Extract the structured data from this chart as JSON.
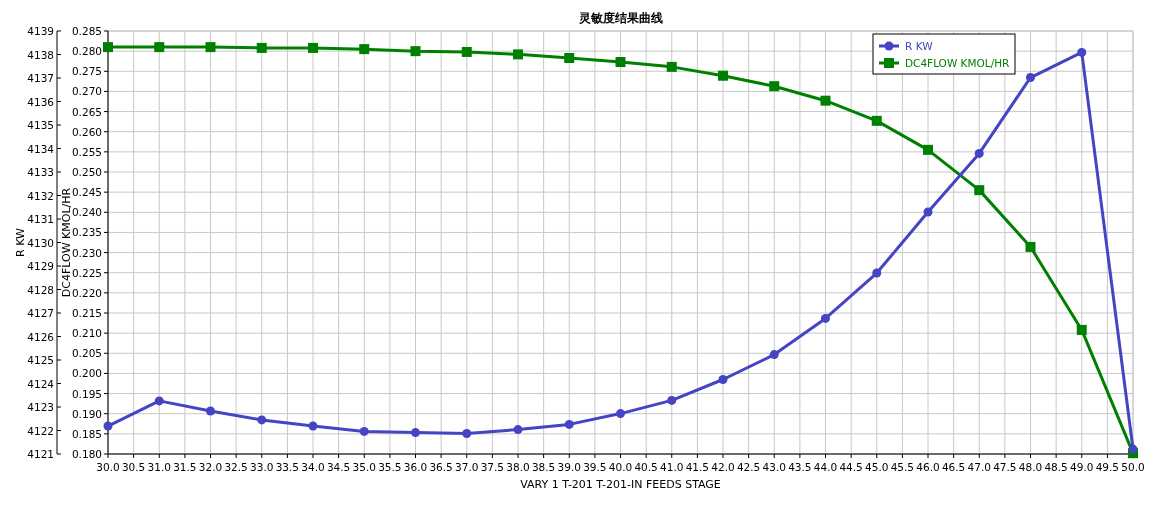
{
  "chart_data": {
    "type": "line",
    "title": "灵敏度结果曲线",
    "xlabel": "VARY   1 T-201 T-201-IN FEEDS STAGE",
    "ylabel": "R KW",
    "y2label": "DC4FLOW KMOL/HR",
    "x": [
      30,
      31,
      32,
      33,
      34,
      35,
      36,
      37,
      38,
      39,
      40,
      41,
      42,
      43,
      44,
      45,
      46,
      47,
      48,
      49,
      50
    ],
    "series": [
      {
        "name": "R KW",
        "color": "#4444c4",
        "marker": "circle",
        "values": [
          4122.19,
          4123.26,
          4122.83,
          4122.45,
          4122.19,
          4121.96,
          4121.91,
          4121.87,
          4122.04,
          4122.26,
          4122.72,
          4123.28,
          4124.17,
          4125.23,
          4126.77,
          4128.7,
          4131.3,
          4133.79,
          4137.02,
          4138.09,
          4121.21
        ]
      },
      {
        "name": "DC4FLOW KMOL/HR",
        "color": "#008000",
        "marker": "square",
        "axis": "y2",
        "values": [
          0.281,
          0.281,
          0.281,
          0.2808,
          0.2808,
          0.2805,
          0.28,
          0.2798,
          0.2792,
          0.2783,
          0.2773,
          0.2761,
          0.2739,
          0.2713,
          0.2677,
          0.2627,
          0.2555,
          0.2455,
          0.2314,
          0.2108,
          0.1802
        ]
      }
    ],
    "xlim": [
      30,
      50
    ],
    "xticks": [
      {
        "value": 30,
        "label": "30.0"
      },
      {
        "value": 30.5,
        "label": "30.5"
      },
      {
        "value": 31,
        "label": "31.0"
      },
      {
        "value": 31.5,
        "label": "31.5"
      },
      {
        "value": 32,
        "label": "32.0"
      },
      {
        "value": 32.5,
        "label": "32.5"
      },
      {
        "value": 33,
        "label": "33.0"
      },
      {
        "value": 33.5,
        "label": "33.5"
      },
      {
        "value": 34,
        "label": "34.0"
      },
      {
        "value": 34.5,
        "label": "34.5"
      },
      {
        "value": 35,
        "label": "35.0"
      },
      {
        "value": 35.5,
        "label": "35.5"
      },
      {
        "value": 36,
        "label": "36.0"
      },
      {
        "value": 36.5,
        "label": "36.5"
      },
      {
        "value": 37,
        "label": "37.0"
      },
      {
        "value": 37.5,
        "label": "37.5"
      },
      {
        "value": 38,
        "label": "38.0"
      },
      {
        "value": 38.5,
        "label": "38.5"
      },
      {
        "value": 39,
        "label": "39.0"
      },
      {
        "value": 39.5,
        "label": "39.5"
      },
      {
        "value": 40,
        "label": "40.0"
      },
      {
        "value": 40.5,
        "label": "40.5"
      },
      {
        "value": 41,
        "label": "41.0"
      },
      {
        "value": 41.5,
        "label": "41.5"
      },
      {
        "value": 42,
        "label": "42.0"
      },
      {
        "value": 42.5,
        "label": "42.5"
      },
      {
        "value": 43,
        "label": "43.0"
      },
      {
        "value": 43.5,
        "label": "43.5"
      },
      {
        "value": 44,
        "label": "44.0"
      },
      {
        "value": 44.5,
        "label": "44.5"
      },
      {
        "value": 45,
        "label": "45.0"
      },
      {
        "value": 45.5,
        "label": "45.5"
      },
      {
        "value": 46,
        "label": "46.0"
      },
      {
        "value": 46.5,
        "label": "46.5"
      },
      {
        "value": 47,
        "label": "47.0"
      },
      {
        "value": 47.5,
        "label": "47.5"
      },
      {
        "value": 48,
        "label": "48.0"
      },
      {
        "value": 48.5,
        "label": "48.5"
      },
      {
        "value": 49,
        "label": "49.0"
      },
      {
        "value": 49.5,
        "label": "49.5"
      },
      {
        "value": 50,
        "label": "50.0"
      }
    ],
    "ylim": [
      4121,
      4139
    ],
    "yticks": [
      4121,
      4122,
      4123,
      4124,
      4125,
      4126,
      4127,
      4128,
      4129,
      4130,
      4131,
      4132,
      4133,
      4134,
      4135,
      4136,
      4137,
      4138,
      4139
    ],
    "y2lim": [
      0.18,
      0.285
    ],
    "y2ticks": [
      {
        "value": 0.18,
        "label": "0.180"
      },
      {
        "value": 0.185,
        "label": "0.185"
      },
      {
        "value": 0.19,
        "label": "0.190"
      },
      {
        "value": 0.195,
        "label": "0.195"
      },
      {
        "value": 0.2,
        "label": "0.200"
      },
      {
        "value": 0.205,
        "label": "0.205"
      },
      {
        "value": 0.21,
        "label": "0.210"
      },
      {
        "value": 0.215,
        "label": "0.215"
      },
      {
        "value": 0.22,
        "label": "0.220"
      },
      {
        "value": 0.225,
        "label": "0.225"
      },
      {
        "value": 0.23,
        "label": "0.230"
      },
      {
        "value": 0.235,
        "label": "0.235"
      },
      {
        "value": 0.24,
        "label": "0.240"
      },
      {
        "value": 0.245,
        "label": "0.245"
      },
      {
        "value": 0.25,
        "label": "0.250"
      },
      {
        "value": 0.255,
        "label": "0.255"
      },
      {
        "value": 0.26,
        "label": "0.260"
      },
      {
        "value": 0.265,
        "label": "0.265"
      },
      {
        "value": 0.27,
        "label": "0.270"
      },
      {
        "value": 0.275,
        "label": "0.275"
      },
      {
        "value": 0.28,
        "label": "0.280"
      },
      {
        "value": 0.285,
        "label": "0.285"
      }
    ],
    "grid": true,
    "legend": "top right",
    "line_style": "solid"
  }
}
